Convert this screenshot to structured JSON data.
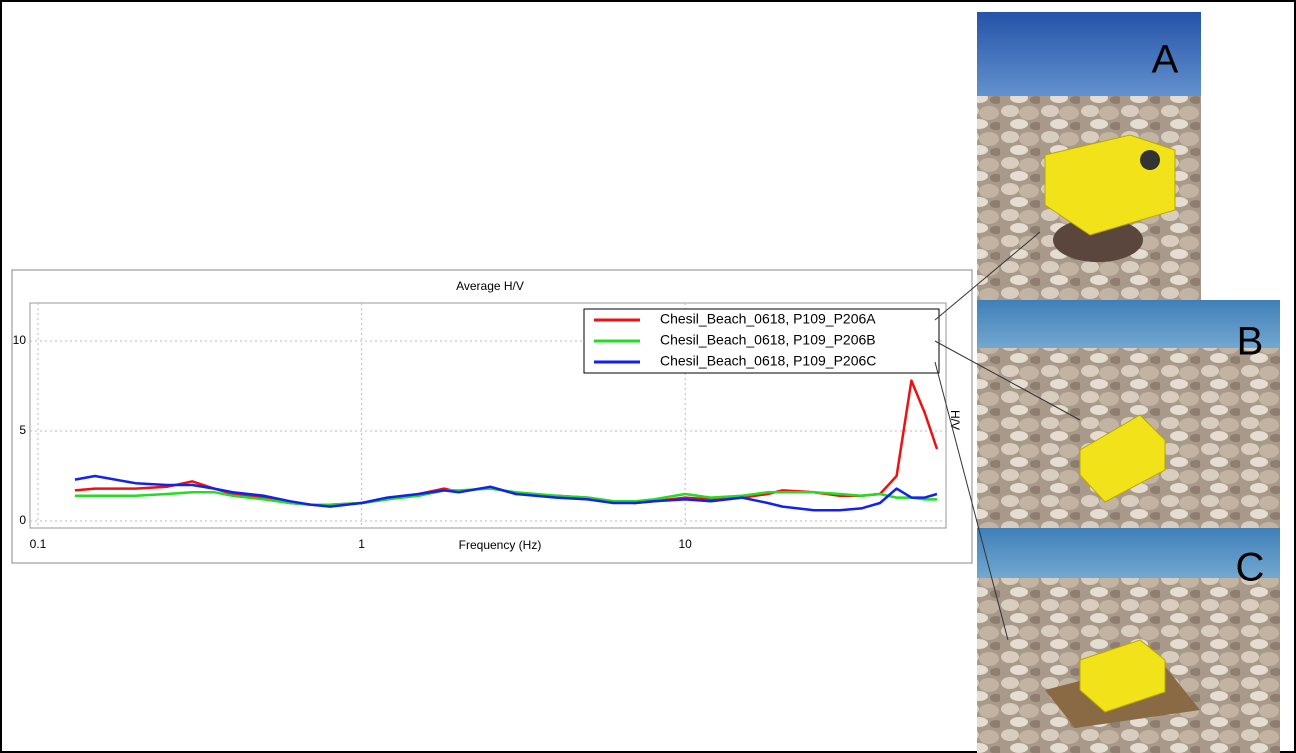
{
  "chart_data": {
    "type": "line",
    "title": "Average H/V",
    "x_label": "Frequency (Hz)",
    "y_label": "H/V",
    "log_x": true,
    "grid": true,
    "legend": "upper right",
    "x": [
      0.13,
      0.15,
      0.2,
      0.25,
      0.3,
      0.35,
      0.4,
      0.5,
      0.6,
      0.7,
      0.8,
      1,
      1.2,
      1.5,
      1.8,
      2,
      2.5,
      3,
      4,
      5,
      6,
      7,
      8,
      10,
      12,
      15,
      18,
      20,
      25,
      30,
      35,
      40,
      45,
      50,
      55,
      60
    ],
    "series": [
      {
        "name": "Chesil_Beach_0618, P109_P206A",
        "color": "#ee1111",
        "values": [
          1.7,
          1.8,
          1.8,
          1.9,
          2.2,
          1.8,
          1.5,
          1.3,
          1.0,
          0.9,
          0.9,
          1.0,
          1.2,
          1.5,
          1.8,
          1.6,
          1.9,
          1.5,
          1.4,
          1.3,
          1.1,
          1.0,
          1.1,
          1.3,
          1.2,
          1.3,
          1.5,
          1.7,
          1.6,
          1.4,
          1.4,
          1.5,
          2.5,
          7.8,
          6.0,
          4.0
        ]
      },
      {
        "name": "Chesil_Beach_0618, P109_P206B",
        "color": "#22dd22",
        "values": [
          1.4,
          1.4,
          1.4,
          1.5,
          1.6,
          1.6,
          1.4,
          1.2,
          1.0,
          0.9,
          0.9,
          1.0,
          1.2,
          1.4,
          1.7,
          1.7,
          1.8,
          1.6,
          1.4,
          1.3,
          1.1,
          1.1,
          1.2,
          1.5,
          1.3,
          1.4,
          1.6,
          1.6,
          1.6,
          1.5,
          1.4,
          1.5,
          1.3,
          1.3,
          1.2,
          1.2
        ]
      },
      {
        "name": "Chesil_Beach_0618, P109_P206C",
        "color": "#1122ee",
        "values": [
          2.3,
          2.5,
          2.1,
          2.0,
          2.0,
          1.8,
          1.6,
          1.4,
          1.1,
          0.9,
          0.8,
          1.0,
          1.3,
          1.5,
          1.7,
          1.6,
          1.9,
          1.5,
          1.3,
          1.2,
          1.0,
          1.0,
          1.1,
          1.2,
          1.1,
          1.3,
          1.0,
          0.8,
          0.6,
          0.6,
          0.7,
          1.0,
          1.8,
          1.3,
          1.3,
          1.5
        ]
      }
    ],
    "xlim": [
      0.1,
      60
    ],
    "ylim": [
      0,
      12
    ],
    "xticks": [
      0.1,
      1,
      10
    ],
    "yticks": [
      0,
      5,
      10
    ]
  },
  "photos": [
    {
      "label": "A"
    },
    {
      "label": "B"
    },
    {
      "label": "C"
    }
  ]
}
